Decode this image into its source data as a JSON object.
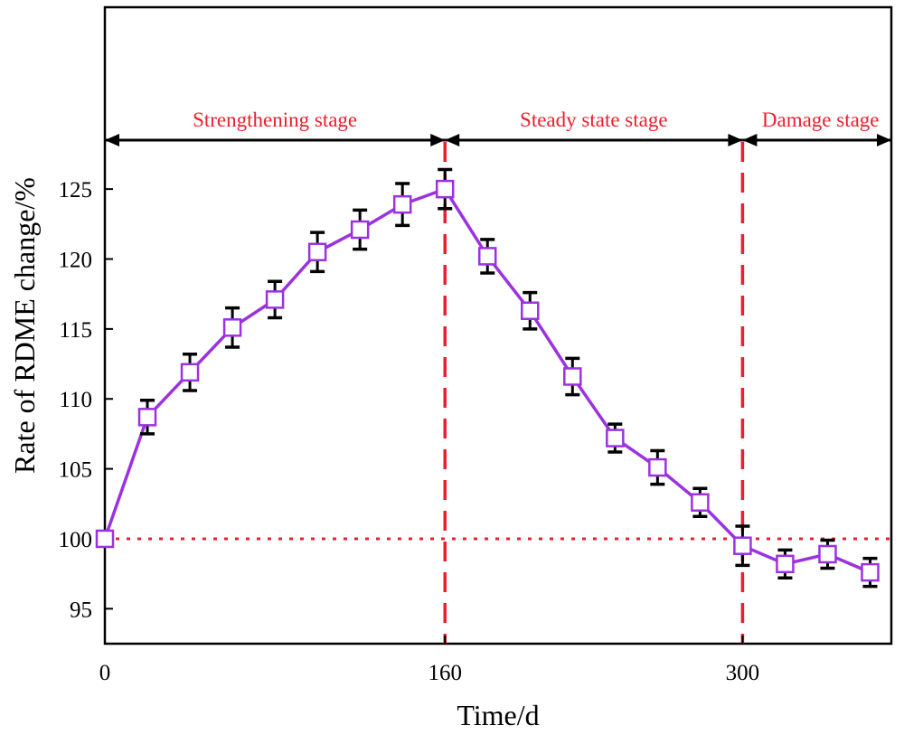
{
  "chart_data": {
    "type": "line",
    "title": "",
    "xlabel": "Time/d",
    "ylabel": "Rate of RDME change/%",
    "xlim": [
      0,
      370
    ],
    "ylim": [
      92.5,
      138
    ],
    "x_ticks": [
      0,
      160,
      300
    ],
    "y_ticks": [
      95,
      100,
      105,
      110,
      115,
      120,
      125
    ],
    "grid": false,
    "legend": "none",
    "colors": {
      "series": "#9b32e0",
      "marker_face": "#ffffff",
      "error_bar": "#000000",
      "reference": "#e8202f",
      "stage_text": "#e8202f",
      "stage_arrow": "#000000"
    },
    "series": [
      {
        "name": "RDME",
        "marker": "square",
        "x": [
          0,
          20,
          40,
          60,
          80,
          100,
          120,
          140,
          160,
          180,
          200,
          220,
          240,
          260,
          280,
          300,
          320,
          340,
          360
        ],
        "y": [
          100,
          108.7,
          111.9,
          115.1,
          117.1,
          120.5,
          122.1,
          123.9,
          125.0,
          120.2,
          116.3,
          111.6,
          107.2,
          105.1,
          102.6,
          99.5,
          98.2,
          98.9,
          97.6
        ],
        "error": [
          0,
          1.2,
          1.3,
          1.4,
          1.3,
          1.4,
          1.4,
          1.5,
          1.4,
          1.2,
          1.3,
          1.3,
          1.0,
          1.2,
          1.0,
          1.4,
          1.0,
          1.0,
          1.0
        ]
      }
    ],
    "reference_line": {
      "y": 100,
      "style": "dotted"
    },
    "stage_boundaries": [
      160,
      300
    ],
    "stages": [
      {
        "label": "Strengthening stage",
        "from": 0,
        "to": 160
      },
      {
        "label": "Steady state stage",
        "from": 160,
        "to": 300
      },
      {
        "label": "Damage stage",
        "from": 300,
        "to": 370
      }
    ]
  }
}
